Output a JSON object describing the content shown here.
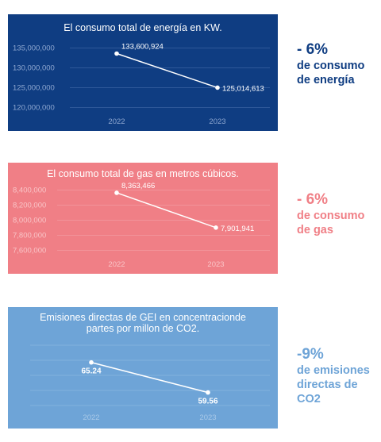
{
  "chart_data": [
    {
      "type": "line",
      "title": "El consumo total de energía en KW.",
      "categories": [
        "2022",
        "2023"
      ],
      "values": [
        133600924,
        125014613
      ],
      "data_labels": [
        "133,600,924",
        "125,014,613"
      ],
      "yticks": [
        "135,000,000",
        "130,000,000",
        "125,000,000",
        "120,000,000"
      ],
      "ylim": [
        117500000,
        137500000
      ],
      "grid": true,
      "colors": {
        "background": "#0f3d82",
        "line": "#ffffff",
        "tick": "#8fa8d1",
        "grid": "#3a62a0"
      }
    },
    {
      "type": "line",
      "title": "El consumo total de gas en metros cúbicos.",
      "categories": [
        "2022",
        "2023"
      ],
      "values": [
        8363466,
        7901941
      ],
      "data_labels": [
        "8,363,466",
        "7,901,941"
      ],
      "yticks": [
        "8,400,000",
        "8,200,000",
        "8,000,000",
        "7,800,000",
        "7,600,000"
      ],
      "ylim": [
        7500000,
        8500000
      ],
      "grid": true,
      "colors": {
        "background": "#f07f86",
        "line": "#ffffff",
        "tick": "#f9c4c7",
        "grid": "#f39ba1"
      }
    },
    {
      "type": "line",
      "title": "Emisiones directas de GEI en concentracionde partes por millon de CO2.",
      "categories": [
        "2022",
        "2023"
      ],
      "values": [
        65.24,
        59.56
      ],
      "data_labels": [
        "65.24",
        "59.56"
      ],
      "yticks": [],
      "ylim": [
        55,
        70
      ],
      "grid": true,
      "colors": {
        "background": "#6ea4d7",
        "line": "#ffffff",
        "tick": "#a9c9e8",
        "grid": "#8bb7e0"
      }
    }
  ],
  "stats": [
    {
      "value": "- 6%",
      "text": "de consumo de energía",
      "color": "#0f3d82"
    },
    {
      "value": "- 6%",
      "text": "de consumo de gas",
      "color": "#f07f86"
    },
    {
      "value": "-9%",
      "text": "de emisiones directas de CO2",
      "color": "#6ea4d7"
    }
  ]
}
